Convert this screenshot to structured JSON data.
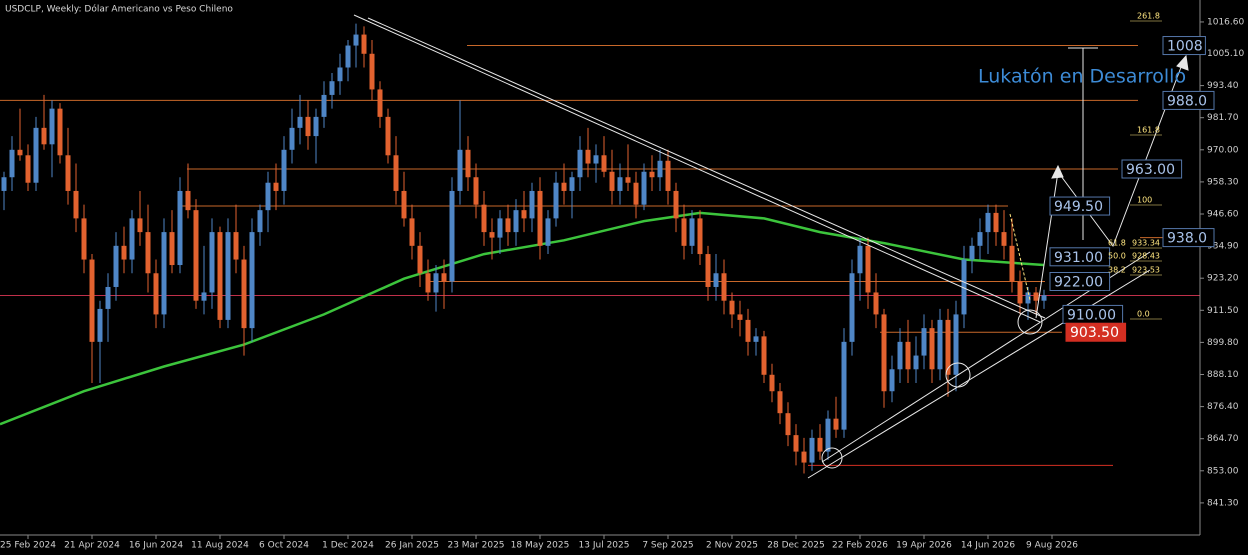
{
  "chart_data": {
    "type": "candlestick",
    "title": "USDCLP, Weekly:  Dólar Americano vs Peso Chileno",
    "annotation": "Lukatón en Desarrollo",
    "up_color": "#4f86c6",
    "down_color": "#e2622f",
    "ma_color": "#3cc43c",
    "xlim": [
      -0.5,
      149.5
    ],
    "ylim": [
      829.6,
      1024.6
    ],
    "xticks": [
      {
        "value": 3,
        "label": "25 Feb 2024"
      },
      {
        "value": 11,
        "label": "21 Apr 2024"
      },
      {
        "value": 19,
        "label": "16 Jun 2024"
      },
      {
        "value": 27,
        "label": "11 Aug 2024"
      },
      {
        "value": 35,
        "label": "6 Oct 2024"
      },
      {
        "value": 43,
        "label": "1 Dec 2024"
      },
      {
        "value": 51,
        "label": "26 Jan 2025"
      },
      {
        "value": 59,
        "label": "23 Mar 2025"
      },
      {
        "value": 67,
        "label": "18 May 2025"
      },
      {
        "value": 75,
        "label": "13 Jul 2025"
      },
      {
        "value": 83,
        "label": "7 Sep 2025"
      },
      {
        "value": 91,
        "label": "2 Nov 2025"
      },
      {
        "value": 99,
        "label": "28 Dec 2025"
      },
      {
        "value": 107,
        "label": "22 Feb 2026"
      },
      {
        "value": 115,
        "label": "19 Apr 2026"
      },
      {
        "value": 123,
        "label": "14 Jun 2026"
      },
      {
        "value": 131,
        "label": "9 Aug 2026"
      }
    ],
    "yticks": [
      {
        "value": 1016.6,
        "label": "1016.60"
      },
      {
        "value": 1005.1,
        "label": "1005.10"
      },
      {
        "value": 993.4,
        "label": "993.40"
      },
      {
        "value": 981.7,
        "label": "981.70"
      },
      {
        "value": 970,
        "label": "970.00"
      },
      {
        "value": 958.3,
        "label": "958.30"
      },
      {
        "value": 946.6,
        "label": "946.60"
      },
      {
        "value": 934.9,
        "label": "934.90"
      },
      {
        "value": 923.2,
        "label": "923.20"
      },
      {
        "value": 911.5,
        "label": "911.50"
      },
      {
        "value": 899.8,
        "label": "899.80"
      },
      {
        "value": 888.1,
        "label": "888.10"
      },
      {
        "value": 876.4,
        "label": "876.40"
      },
      {
        "value": 864.7,
        "label": "864.70"
      },
      {
        "value": 853,
        "label": "853.00"
      },
      {
        "value": 841.3,
        "label": "841.30"
      }
    ],
    "candles": [
      [
        955,
        962,
        948,
        960
      ],
      [
        960,
        975,
        955,
        970
      ],
      [
        970,
        985,
        966,
        968
      ],
      [
        968,
        972,
        955,
        958
      ],
      [
        958,
        982,
        955,
        978
      ],
      [
        978,
        990,
        970,
        972
      ],
      [
        972,
        988,
        960,
        985
      ],
      [
        985,
        987,
        965,
        968
      ],
      [
        968,
        978,
        950,
        955
      ],
      [
        955,
        965,
        940,
        945
      ],
      [
        945,
        950,
        925,
        930
      ],
      [
        930,
        932,
        885,
        900
      ],
      [
        900,
        915,
        885,
        912
      ],
      [
        912,
        925,
        900,
        920
      ],
      [
        920,
        940,
        915,
        935
      ],
      [
        935,
        942,
        925,
        930
      ],
      [
        930,
        948,
        925,
        945
      ],
      [
        945,
        955,
        935,
        940
      ],
      [
        940,
        950,
        918,
        925
      ],
      [
        925,
        930,
        905,
        910
      ],
      [
        910,
        945,
        905,
        940
      ],
      [
        940,
        948,
        925,
        928
      ],
      [
        928,
        960,
        925,
        955
      ],
      [
        955,
        965,
        945,
        948
      ],
      [
        948,
        952,
        912,
        915
      ],
      [
        915,
        935,
        910,
        918
      ],
      [
        918,
        945,
        912,
        940
      ],
      [
        940,
        942,
        905,
        908
      ],
      [
        908,
        945,
        905,
        940
      ],
      [
        940,
        950,
        925,
        930
      ],
      [
        930,
        935,
        895,
        905
      ],
      [
        905,
        945,
        900,
        940
      ],
      [
        940,
        950,
        935,
        948
      ],
      [
        948,
        962,
        940,
        958
      ],
      [
        958,
        965,
        948,
        955
      ],
      [
        955,
        975,
        950,
        970
      ],
      [
        970,
        985,
        965,
        978
      ],
      [
        978,
        990,
        972,
        982
      ],
      [
        982,
        988,
        970,
        975
      ],
      [
        975,
        985,
        965,
        982
      ],
      [
        982,
        995,
        978,
        990
      ],
      [
        990,
        998,
        985,
        995
      ],
      [
        995,
        1005,
        990,
        1000
      ],
      [
        1000,
        1010,
        995,
        1008
      ],
      [
        1008,
        1016,
        1000,
        1012
      ],
      [
        1012,
        1015,
        1000,
        1005
      ],
      [
        1005,
        1010,
        988,
        992
      ],
      [
        992,
        995,
        978,
        982
      ],
      [
        982,
        985,
        965,
        968
      ],
      [
        968,
        975,
        950,
        955
      ],
      [
        955,
        962,
        942,
        945
      ],
      [
        945,
        950,
        930,
        935
      ],
      [
        935,
        940,
        920,
        925
      ],
      [
        925,
        930,
        915,
        918
      ],
      [
        918,
        928,
        911,
        925
      ],
      [
        925,
        930,
        912,
        922
      ],
      [
        922,
        960,
        918,
        955
      ],
      [
        955,
        988,
        950,
        970
      ],
      [
        970,
        975,
        955,
        960
      ],
      [
        960,
        965,
        945,
        950
      ],
      [
        950,
        955,
        935,
        940
      ],
      [
        940,
        945,
        930,
        938
      ],
      [
        938,
        948,
        932,
        945
      ],
      [
        945,
        950,
        935,
        940
      ],
      [
        940,
        952,
        935,
        948
      ],
      [
        948,
        955,
        940,
        945
      ],
      [
        945,
        958,
        940,
        955
      ],
      [
        955,
        960,
        930,
        935
      ],
      [
        935,
        948,
        932,
        945
      ],
      [
        945,
        962,
        942,
        958
      ],
      [
        958,
        965,
        950,
        955
      ],
      [
        955,
        962,
        945,
        960
      ],
      [
        960,
        975,
        955,
        970
      ],
      [
        970,
        978,
        960,
        965
      ],
      [
        965,
        972,
        958,
        968
      ],
      [
        968,
        975,
        960,
        962
      ],
      [
        962,
        970,
        950,
        955
      ],
      [
        955,
        965,
        950,
        960
      ],
      [
        960,
        972,
        955,
        958
      ],
      [
        958,
        962,
        945,
        950
      ],
      [
        950,
        965,
        948,
        962
      ],
      [
        962,
        968,
        955,
        960
      ],
      [
        960,
        970,
        955,
        966
      ],
      [
        966,
        970,
        950,
        955
      ],
      [
        955,
        958,
        940,
        945
      ],
      [
        945,
        950,
        930,
        935
      ],
      [
        935,
        948,
        932,
        945
      ],
      [
        945,
        948,
        928,
        932
      ],
      [
        932,
        935,
        915,
        920
      ],
      [
        920,
        932,
        915,
        925
      ],
      [
        925,
        930,
        910,
        915
      ],
      [
        915,
        918,
        905,
        910
      ],
      [
        910,
        915,
        902,
        908
      ],
      [
        908,
        912,
        895,
        900
      ],
      [
        900,
        905,
        895,
        902
      ],
      [
        902,
        904,
        885,
        888
      ],
      [
        888,
        892,
        878,
        882
      ],
      [
        882,
        885,
        870,
        874
      ],
      [
        874,
        878,
        862,
        866
      ],
      [
        866,
        870,
        855,
        860
      ],
      [
        860,
        865,
        852,
        856
      ],
      [
        856,
        868,
        853,
        865
      ],
      [
        865,
        870,
        857,
        860
      ],
      [
        860,
        875,
        857,
        872
      ],
      [
        872,
        880,
        865,
        868
      ],
      [
        868,
        905,
        865,
        900
      ],
      [
        900,
        930,
        895,
        925
      ],
      [
        925,
        938,
        915,
        935
      ],
      [
        935,
        938,
        912,
        918
      ],
      [
        918,
        925,
        905,
        910
      ],
      [
        910,
        912,
        876,
        882
      ],
      [
        882,
        895,
        878,
        890
      ],
      [
        890,
        905,
        885,
        900
      ],
      [
        900,
        908,
        885,
        890
      ],
      [
        890,
        902,
        885,
        895
      ],
      [
        895,
        910,
        890,
        905
      ],
      [
        905,
        908,
        885,
        890
      ],
      [
        890,
        912,
        886,
        908
      ],
      [
        908,
        912,
        880,
        888
      ],
      [
        888,
        915,
        882,
        910
      ],
      [
        910,
        935,
        905,
        930
      ],
      [
        930,
        938,
        925,
        935
      ],
      [
        935,
        945,
        930,
        940
      ],
      [
        940,
        950,
        932,
        947
      ],
      [
        947,
        950,
        935,
        940
      ],
      [
        940,
        948,
        930,
        935
      ],
      [
        935,
        945,
        918,
        922
      ],
      [
        922,
        926,
        910,
        914
      ],
      [
        914,
        920,
        908,
        918
      ],
      [
        918,
        920,
        910,
        915
      ],
      [
        915,
        919,
        912,
        917
      ]
    ],
    "ma": {
      "x": [
        -0.5,
        10,
        20,
        30,
        40,
        50,
        60,
        70,
        80,
        87,
        95,
        102,
        110,
        120,
        130
      ],
      "values": [
        870,
        882,
        891,
        899,
        910,
        923,
        932,
        937,
        944,
        947,
        945,
        940,
        936,
        930,
        928
      ]
    },
    "last_price": 916.9,
    "support": 855,
    "levels": [
      {
        "value": 1008,
        "label": "1008"
      },
      {
        "value": 988,
        "label": "988.0"
      },
      {
        "value": 963,
        "label": "963.00"
      },
      {
        "value": 949.5,
        "label": "949.50"
      },
      {
        "value": 938,
        "label": "938.0"
      },
      {
        "value": 931,
        "label": "931.00"
      },
      {
        "value": 922,
        "label": "922.00"
      },
      {
        "value": 910,
        "label": "910.00"
      },
      {
        "value": 903.5,
        "label": "903.50"
      }
    ],
    "fib": [
      {
        "level": "261.8"
      },
      {
        "level": "161.8"
      },
      {
        "level": "100"
      },
      {
        "level": "61.8",
        "price": 933.34
      },
      {
        "level": "50.0",
        "price": 928.43
      },
      {
        "level": "38.2",
        "price": 923.53
      },
      {
        "level": "0.0"
      }
    ]
  }
}
